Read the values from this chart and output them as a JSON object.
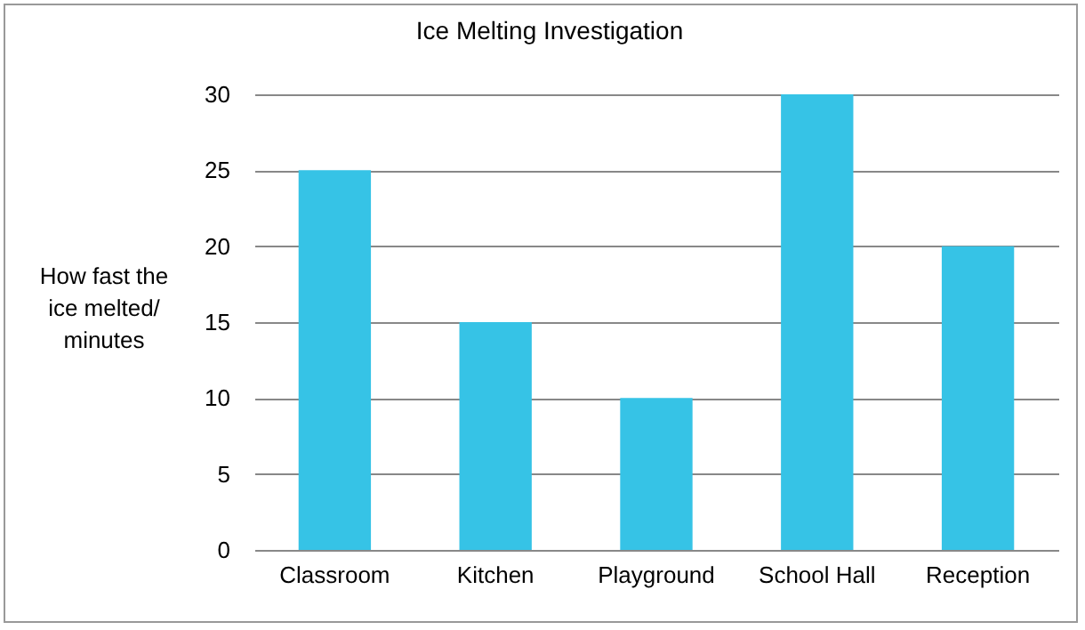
{
  "chart_data": {
    "type": "bar",
    "title": "Ice Melting Investigation",
    "ylabel": "How fast the ice melted/ minutes",
    "categories": [
      "Classroom",
      "Kitchen",
      "Playground",
      "School Hall",
      "Reception"
    ],
    "values": [
      25,
      15,
      10,
      30,
      20
    ],
    "color": "#36c3e6",
    "ylim": [
      0,
      30
    ],
    "yticks": [
      0,
      5,
      10,
      15,
      20,
      25,
      30
    ],
    "grid": "y"
  }
}
